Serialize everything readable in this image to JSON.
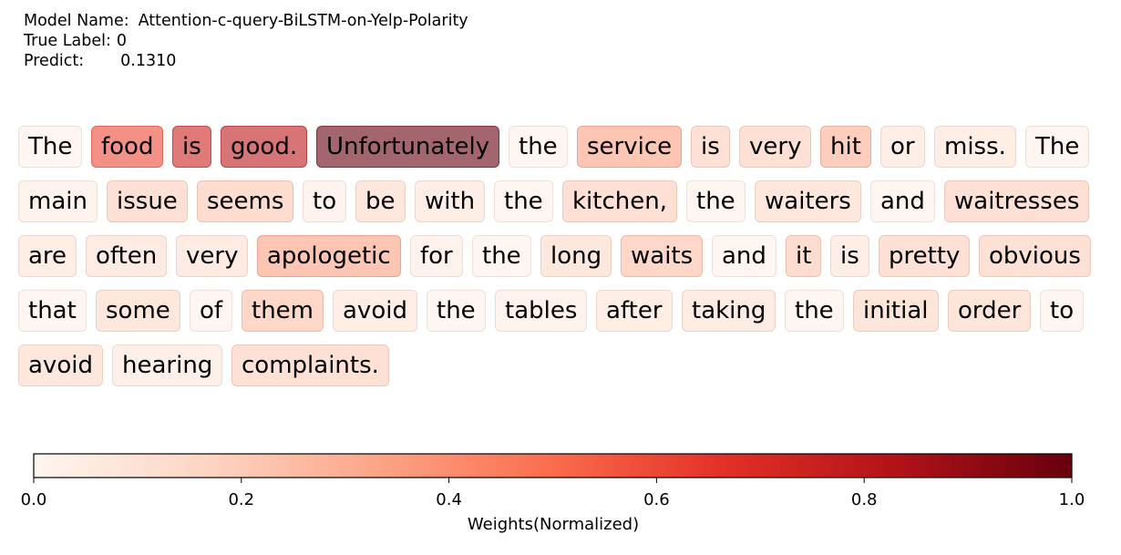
{
  "header": {
    "model_label": "Model Name:",
    "model_value": "Attention-c-query-BiLSTM-on-Yelp-Polarity",
    "true_label_label": "True Label:",
    "true_label_value": "0",
    "predict_label": "Predict:",
    "predict_value": "0.1310"
  },
  "chart_data": {
    "type": "heatmap",
    "title": "",
    "colormap": "Reds",
    "colorbar": {
      "label": "Weights(Normalized)",
      "range": [
        0.0,
        1.0
      ],
      "ticks": [
        "0.0",
        "0.2",
        "0.4",
        "0.6",
        "0.8",
        "1.0"
      ],
      "colors": [
        "#fff5f0",
        "#fdd5c3",
        "#fca486",
        "#fb6c4c",
        "#e32f27",
        "#b11218",
        "#67000d"
      ]
    },
    "tokens": [
      {
        "text": "The",
        "weight": 0.03
      },
      {
        "text": "food",
        "weight": 0.6
      },
      {
        "text": "is",
        "weight": 0.75
      },
      {
        "text": "good.",
        "weight": 0.8
      },
      {
        "text": "Unfortunately",
        "weight": 1.0
      },
      {
        "text": "the",
        "weight": 0.03
      },
      {
        "text": "service",
        "weight": 0.35
      },
      {
        "text": "is",
        "weight": 0.2
      },
      {
        "text": "very",
        "weight": 0.2
      },
      {
        "text": "hit",
        "weight": 0.3
      },
      {
        "text": "or",
        "weight": 0.1
      },
      {
        "text": "miss.",
        "weight": 0.1
      },
      {
        "text": "The",
        "weight": 0.03
      },
      {
        "text": "main",
        "weight": 0.06
      },
      {
        "text": "issue",
        "weight": 0.2
      },
      {
        "text": "seems",
        "weight": 0.22
      },
      {
        "text": "to",
        "weight": 0.05
      },
      {
        "text": "be",
        "weight": 0.15
      },
      {
        "text": "with",
        "weight": 0.1
      },
      {
        "text": "the",
        "weight": 0.03
      },
      {
        "text": "kitchen,",
        "weight": 0.2
      },
      {
        "text": "the",
        "weight": 0.03
      },
      {
        "text": "waiters",
        "weight": 0.15
      },
      {
        "text": "and",
        "weight": 0.03
      },
      {
        "text": "waitresses",
        "weight": 0.2
      },
      {
        "text": "are",
        "weight": 0.1
      },
      {
        "text": "often",
        "weight": 0.12
      },
      {
        "text": "very",
        "weight": 0.12
      },
      {
        "text": "apologetic",
        "weight": 0.35
      },
      {
        "text": "for",
        "weight": 0.06
      },
      {
        "text": "the",
        "weight": 0.03
      },
      {
        "text": "long",
        "weight": 0.15
      },
      {
        "text": "waits",
        "weight": 0.25
      },
      {
        "text": "and",
        "weight": 0.03
      },
      {
        "text": "it",
        "weight": 0.22
      },
      {
        "text": "is",
        "weight": 0.1
      },
      {
        "text": "pretty",
        "weight": 0.2
      },
      {
        "text": "obvious",
        "weight": 0.2
      },
      {
        "text": "that",
        "weight": 0.03
      },
      {
        "text": "some",
        "weight": 0.15
      },
      {
        "text": "of",
        "weight": 0.03
      },
      {
        "text": "them",
        "weight": 0.25
      },
      {
        "text": "avoid",
        "weight": 0.1
      },
      {
        "text": "the",
        "weight": 0.03
      },
      {
        "text": "tables",
        "weight": 0.06
      },
      {
        "text": "after",
        "weight": 0.1
      },
      {
        "text": "taking",
        "weight": 0.12
      },
      {
        "text": "the",
        "weight": 0.03
      },
      {
        "text": "initial",
        "weight": 0.17
      },
      {
        "text": "order",
        "weight": 0.17
      },
      {
        "text": "to",
        "weight": 0.03
      },
      {
        "text": "avoid",
        "weight": 0.15
      },
      {
        "text": "hearing",
        "weight": 0.08
      },
      {
        "text": "complaints.",
        "weight": 0.2
      }
    ]
  }
}
